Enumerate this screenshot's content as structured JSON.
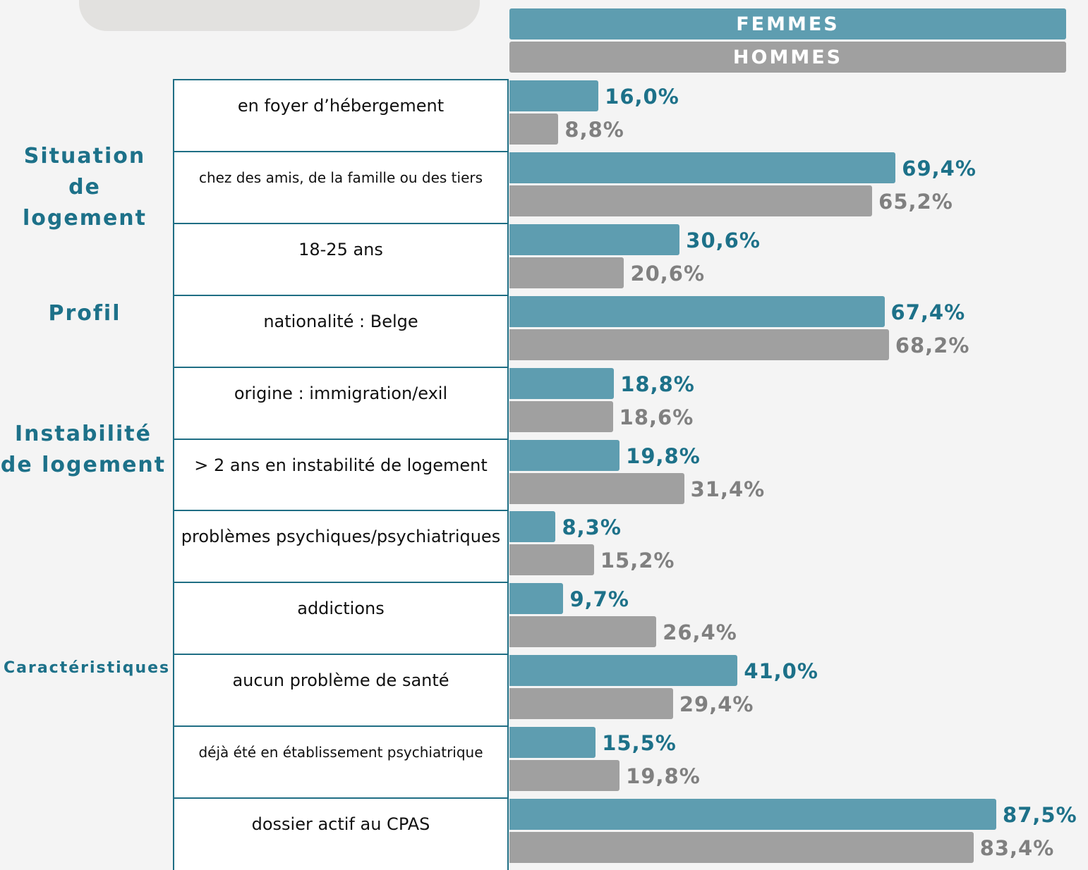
{
  "chart_data": {
    "type": "bar",
    "orientation": "horizontal",
    "groups": [
      "Situation de logement",
      "Profil",
      "Instabilité de logement",
      "Caractéristiques"
    ],
    "categories": [
      "en foyer d’hébergement",
      "chez des amis, de la famille ou des tiers",
      "18-25 ans",
      "nationalité : Belge",
      "origine : immigration/exil",
      "> 2 ans en instabilité de logement",
      "problèmes psychiques/psychiatriques",
      "addictions",
      "aucun problème de santé",
      "déjà été en établissement psychiatrique",
      "dossier actif au CPAS"
    ],
    "series": [
      {
        "name": "FEMMES",
        "color": "#5e9db0",
        "label_color": "#1d7189",
        "values": [
          16.0,
          69.4,
          30.6,
          67.4,
          18.8,
          19.8,
          8.3,
          9.7,
          41.0,
          15.5,
          87.5
        ],
        "value_labels": [
          "16,0%",
          "69,4%",
          "30,6%",
          "67,4%",
          "18,8%",
          "19,8%",
          "8,3%",
          "9,7%",
          "41,0%",
          "15,5%",
          "87,5%"
        ]
      },
      {
        "name": "HOMMES",
        "color": "#a0a0a0",
        "label_color": "#808080",
        "values": [
          8.8,
          65.2,
          20.6,
          68.2,
          18.6,
          31.4,
          15.2,
          26.4,
          29.4,
          19.8,
          83.4
        ],
        "value_labels": [
          "8,8%",
          "65,2%",
          "20,6%",
          "68,2%",
          "18,6%",
          "31,4%",
          "15,2%",
          "26,4%",
          "29,4%",
          "19,8%",
          "83,4%"
        ]
      }
    ]
  }
}
